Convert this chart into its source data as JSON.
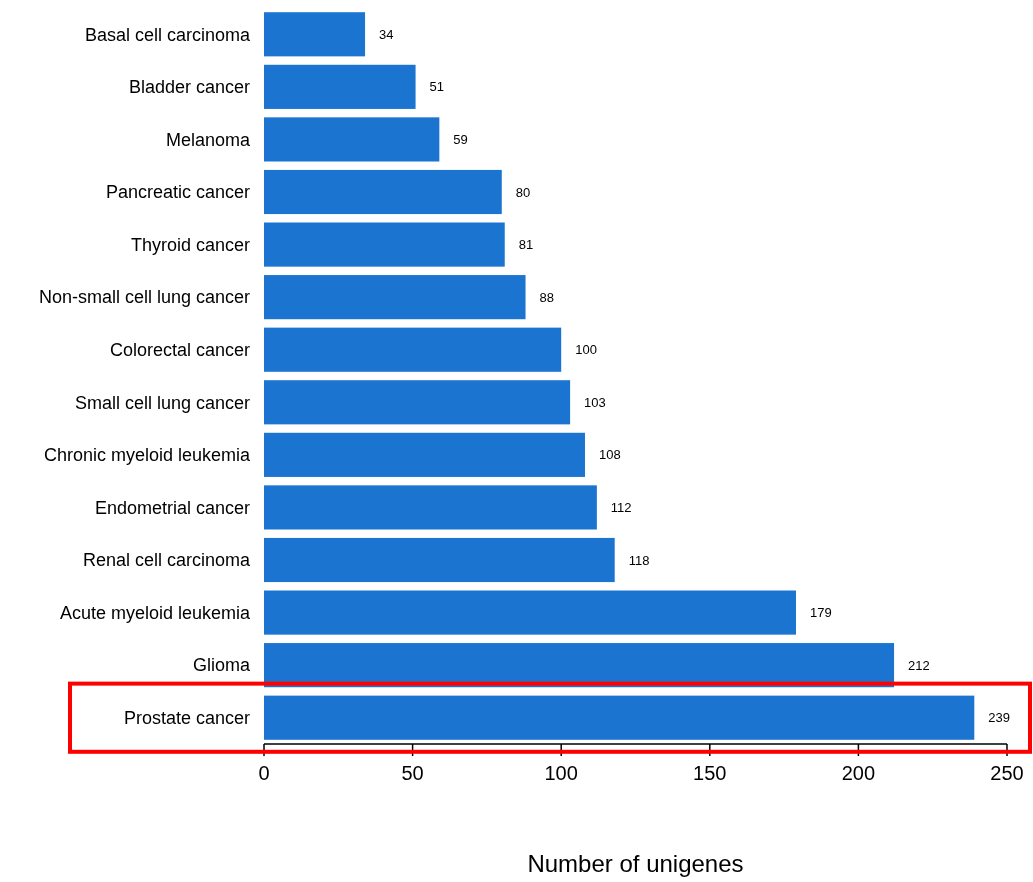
{
  "chart_data": {
    "type": "bar",
    "orientation": "horizontal",
    "xlabel": "Number of unigenes",
    "categories": [
      "Basal cell carcinoma",
      "Bladder cancer",
      "Melanoma",
      "Pancreatic cancer",
      "Thyroid cancer",
      "Non-small cell lung cancer",
      "Colorectal cancer",
      "Small cell lung cancer",
      "Chronic myeloid leukemia",
      "Endometrial cancer",
      "Renal cell carcinoma",
      "Acute myeloid leukemia",
      "Glioma",
      "Prostate cancer"
    ],
    "values": [
      34,
      51,
      59,
      80,
      81,
      88,
      100,
      103,
      108,
      112,
      118,
      179,
      212,
      239
    ],
    "color": "#1b75d0",
    "xlim": [
      0,
      250
    ],
    "xticks": [
      0,
      50,
      100,
      150,
      200,
      250
    ],
    "data_labels": true
  }
}
